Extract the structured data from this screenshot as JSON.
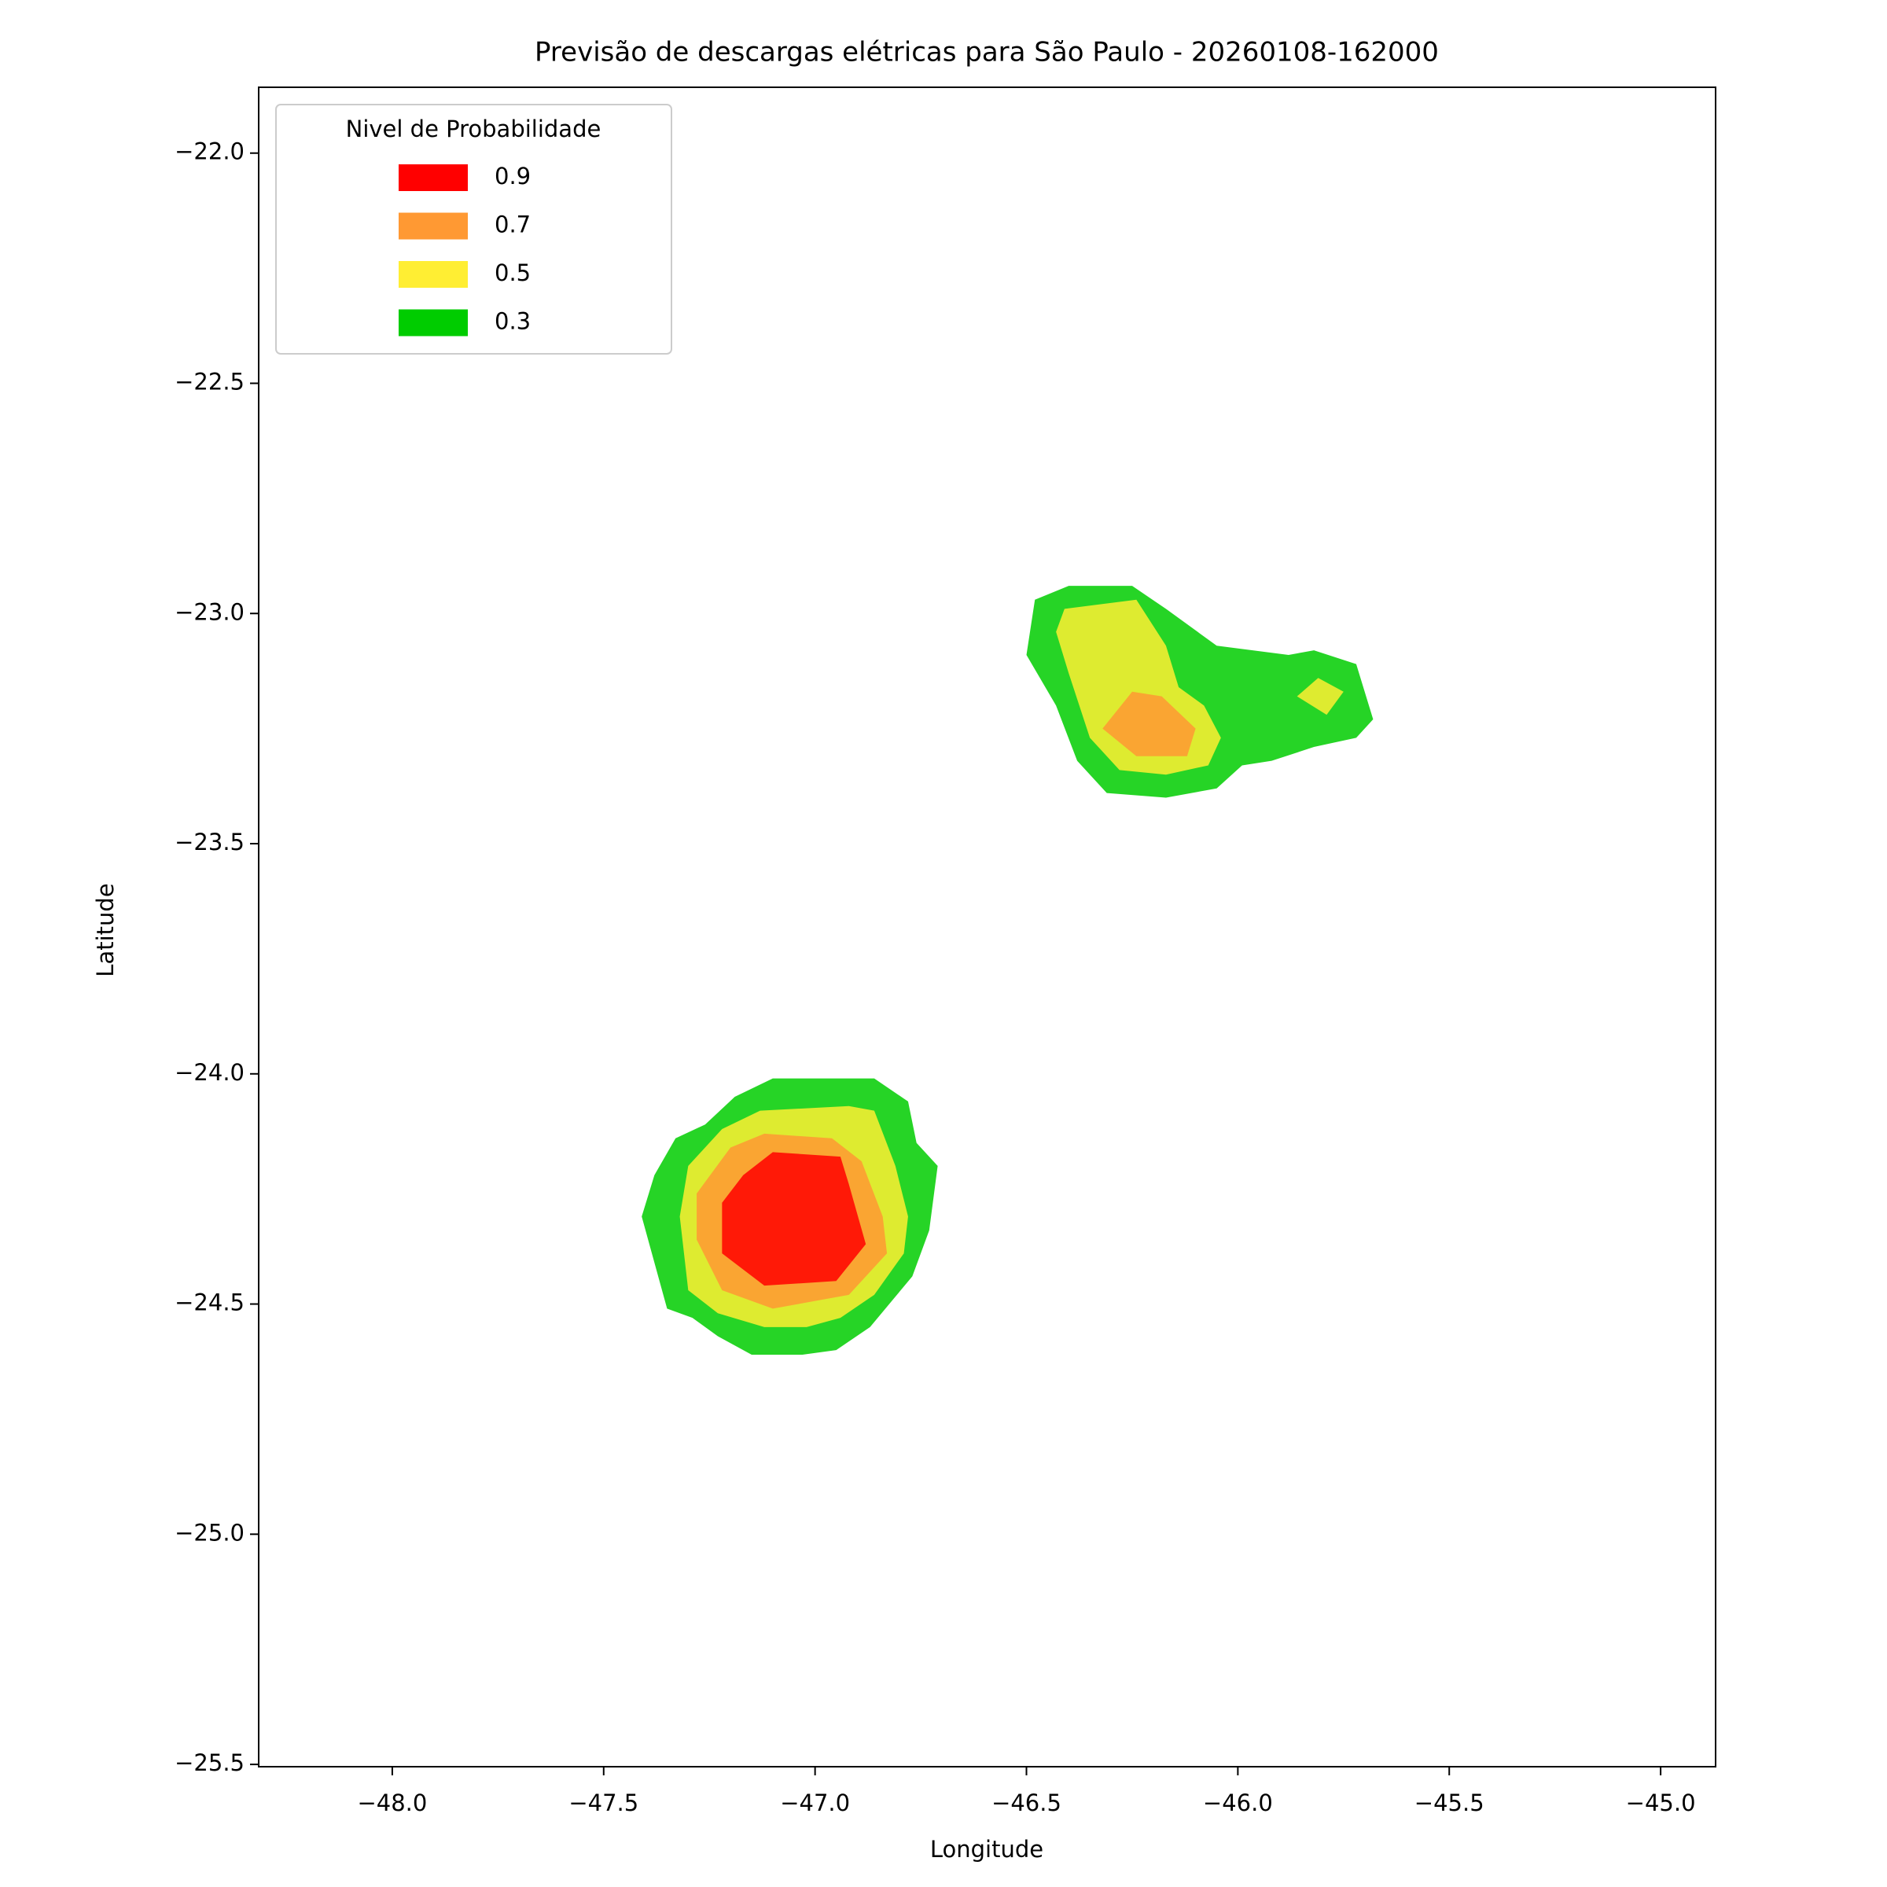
{
  "chart_data": {
    "type": "contour",
    "title": "Previsão de descargas elétricas para São Paulo - 20260108-162000",
    "x_label": "Longitude",
    "y_label": "Latitude",
    "legend_title": "Nivel de Probabilidade",
    "legend_position": "upper left",
    "alpha": 0.85,
    "xlim": [
      -48.316,
      -44.87
    ],
    "ylim": [
      -25.505,
      -21.857
    ],
    "xticks": [
      {
        "value": -48,
        "label": "−48.0"
      },
      {
        "value": -47.5,
        "label": "−47.5"
      },
      {
        "value": -47,
        "label": "−47.0"
      },
      {
        "value": -46.5,
        "label": "−46.5"
      },
      {
        "value": -46,
        "label": "−46.0"
      },
      {
        "value": -45.5,
        "label": "−45.5"
      },
      {
        "value": -45,
        "label": "−45.0"
      }
    ],
    "yticks": [
      {
        "value": -22,
        "label": "−22.0"
      },
      {
        "value": -22.5,
        "label": "−22.5"
      },
      {
        "value": -23,
        "label": "−23.0"
      },
      {
        "value": -23.5,
        "label": "−23.5"
      },
      {
        "value": -24,
        "label": "−24.0"
      },
      {
        "value": -24.5,
        "label": "−24.5"
      },
      {
        "value": -25,
        "label": "−25.0"
      },
      {
        "value": -25.5,
        "label": "−25.5"
      }
    ],
    "levels": [
      {
        "value": 0.9,
        "color": "#ff0000",
        "polygons": [
          [
            [
              -47.17,
              -24.22
            ],
            [
              -47.1,
              -24.17
            ],
            [
              -46.94,
              -24.18
            ],
            [
              -46.92,
              -24.24
            ],
            [
              -46.88,
              -24.37
            ],
            [
              -46.95,
              -24.45
            ],
            [
              -47.12,
              -24.46
            ],
            [
              -47.22,
              -24.39
            ],
            [
              -47.22,
              -24.28
            ]
          ]
        ]
      },
      {
        "value": 0.7,
        "color": "#ff9933",
        "polygons": [
          [
            [
              -47.2,
              -24.16
            ],
            [
              -47.12,
              -24.13
            ],
            [
              -46.96,
              -24.14
            ],
            [
              -46.89,
              -24.19
            ],
            [
              -46.84,
              -24.31
            ],
            [
              -46.83,
              -24.39
            ],
            [
              -46.92,
              -24.48
            ],
            [
              -47.1,
              -24.51
            ],
            [
              -47.22,
              -24.47
            ],
            [
              -47.28,
              -24.36
            ],
            [
              -47.28,
              -24.26
            ]
          ],
          [
            [
              -46.32,
              -23.25
            ],
            [
              -46.25,
              -23.17
            ],
            [
              -46.18,
              -23.18
            ],
            [
              -46.1,
              -23.25
            ],
            [
              -46.12,
              -23.31
            ],
            [
              -46.24,
              -23.31
            ]
          ]
        ]
      },
      {
        "value": 0.5,
        "color": "#ffee33",
        "polygons": [
          [
            [
              -47.22,
              -24.12
            ],
            [
              -47.13,
              -24.08
            ],
            [
              -46.92,
              -24.07
            ],
            [
              -46.86,
              -24.08
            ],
            [
              -46.81,
              -24.2
            ],
            [
              -46.78,
              -24.31
            ],
            [
              -46.79,
              -24.39
            ],
            [
              -46.86,
              -24.48
            ],
            [
              -46.94,
              -24.53
            ],
            [
              -47.02,
              -24.55
            ],
            [
              -47.12,
              -24.55
            ],
            [
              -47.23,
              -24.52
            ],
            [
              -47.3,
              -24.47
            ],
            [
              -47.32,
              -24.31
            ],
            [
              -47.3,
              -24.2
            ]
          ],
          [
            [
              -46.41,
              -22.99
            ],
            [
              -46.24,
              -22.97
            ],
            [
              -46.17,
              -23.07
            ],
            [
              -46.14,
              -23.16
            ],
            [
              -46.08,
              -23.2
            ],
            [
              -46.04,
              -23.27
            ],
            [
              -46.07,
              -23.33
            ],
            [
              -46.17,
              -23.35
            ],
            [
              -46.28,
              -23.34
            ],
            [
              -46.35,
              -23.27
            ],
            [
              -46.4,
              -23.13
            ],
            [
              -46.43,
              -23.04
            ]
          ],
          [
            [
              -45.86,
              -23.18
            ],
            [
              -45.81,
              -23.14
            ],
            [
              -45.75,
              -23.17
            ],
            [
              -45.79,
              -23.22
            ]
          ]
        ]
      },
      {
        "value": 0.3,
        "color": "#00cc00",
        "polygons": [
          [
            [
              -47.33,
              -24.14
            ],
            [
              -47.26,
              -24.11
            ],
            [
              -47.19,
              -24.05
            ],
            [
              -47.1,
              -24.01
            ],
            [
              -47.0,
              -24.01
            ],
            [
              -46.86,
              -24.01
            ],
            [
              -46.78,
              -24.06
            ],
            [
              -46.76,
              -24.15
            ],
            [
              -46.71,
              -24.2
            ],
            [
              -46.73,
              -24.34
            ],
            [
              -46.77,
              -24.44
            ],
            [
              -46.87,
              -24.55
            ],
            [
              -46.95,
              -24.6
            ],
            [
              -47.03,
              -24.61
            ],
            [
              -47.15,
              -24.61
            ],
            [
              -47.23,
              -24.57
            ],
            [
              -47.29,
              -24.53
            ],
            [
              -47.35,
              -24.51
            ],
            [
              -47.41,
              -24.31
            ],
            [
              -47.38,
              -24.22
            ]
          ],
          [
            [
              -46.48,
              -22.97
            ],
            [
              -46.4,
              -22.94
            ],
            [
              -46.25,
              -22.94
            ],
            [
              -46.17,
              -22.99
            ],
            [
              -46.05,
              -23.07
            ],
            [
              -45.88,
              -23.09
            ],
            [
              -45.82,
              -23.08
            ],
            [
              -45.72,
              -23.11
            ],
            [
              -45.68,
              -23.23
            ],
            [
              -45.72,
              -23.27
            ],
            [
              -45.82,
              -23.29
            ],
            [
              -45.92,
              -23.32
            ],
            [
              -45.99,
              -23.33
            ],
            [
              -46.05,
              -23.38
            ],
            [
              -46.17,
              -23.4
            ],
            [
              -46.31,
              -23.39
            ],
            [
              -46.38,
              -23.32
            ],
            [
              -46.43,
              -23.2
            ],
            [
              -46.5,
              -23.09
            ]
          ]
        ]
      }
    ]
  }
}
